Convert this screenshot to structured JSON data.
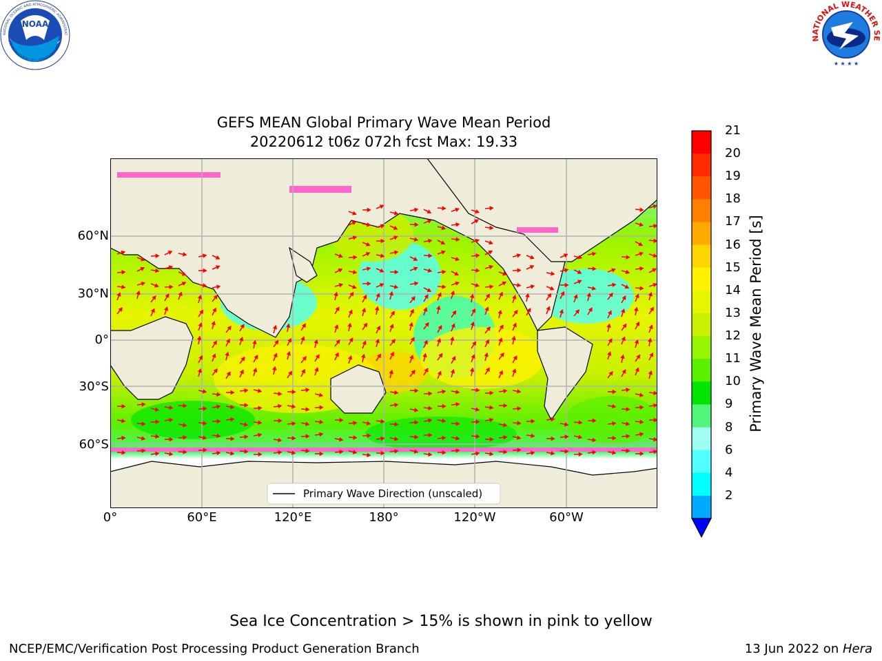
{
  "header": {
    "title_line1": "GEFS MEAN Global Primary Wave Mean Period",
    "title_line2": "20220612 t06z 072h fcst   Max: 19.33"
  },
  "logos": {
    "noaa": {
      "text": "NOAA",
      "ring_text": "NATIONAL OCEANIC AND ATMOSPHERIC ADMINISTRATION",
      "ring_text_bottom": "U.S. DEPARTMENT OF COMMERCE"
    },
    "nws": {
      "ring_text": "NATIONAL WEATHER SERVICE"
    }
  },
  "map": {
    "lat_ticks": [
      "60°N",
      "30°N",
      "0°",
      "30°S",
      "60°S"
    ],
    "lon_ticks": [
      "0°",
      "60°E",
      "120°E",
      "180°",
      "120°W",
      "60°W"
    ],
    "legend_label": "Primary Wave Direction (unscaled)",
    "colors": {
      "land": "#efedda",
      "ocean_mid": "#e6f500",
      "ice": "#ff66cc",
      "arrow": "#ff0000"
    }
  },
  "colorbar": {
    "label": "Primary Wave Mean Period [s]",
    "ticks": [
      "21",
      "20",
      "19",
      "18",
      "17",
      "16",
      "15",
      "14",
      "13",
      "12",
      "11",
      "10",
      "9",
      "8",
      "6",
      "4",
      "2"
    ],
    "colors": [
      "#ff0000",
      "#ff2a00",
      "#ff5500",
      "#ff8000",
      "#ffaa00",
      "#ffd500",
      "#fff200",
      "#e6f500",
      "#c8f000",
      "#96f500",
      "#5af000",
      "#00e600",
      "#50f57a",
      "#a0fff0",
      "#50ffff",
      "#00ffff",
      "#00aaff"
    ],
    "extend_color": "#0000ff"
  },
  "footer": {
    "note": "Sea Ice Concentration > 15% is shown in pink to yellow",
    "left": "NCEP/EMC/Verification Post Processing Product Generation Branch",
    "right_date": "13 Jun 2022 on ",
    "right_host": "Hera"
  }
}
